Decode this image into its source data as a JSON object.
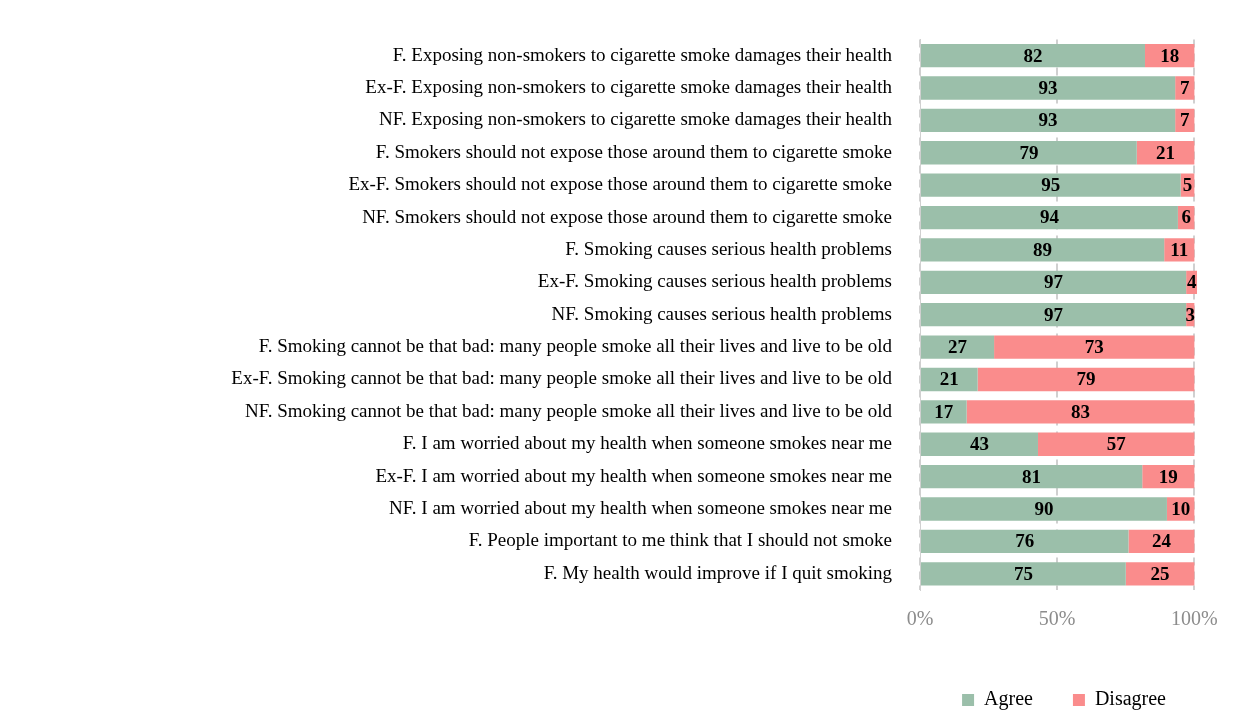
{
  "chart_data": {
    "type": "bar",
    "orientation": "horizontal",
    "stacked": true,
    "categories": [
      "F. Exposing non-smokers to cigarette smoke damages their health",
      "Ex-F. Exposing non-smokers to cigarette smoke damages their health",
      "NF. Exposing non-smokers to cigarette smoke damages their health",
      "F. Smokers should not expose those around them to cigarette smoke",
      "Ex-F. Smokers should not expose those around them to cigarette smoke",
      "NF. Smokers should not expose those around them to cigarette smoke",
      "F. Smoking causes serious health problems",
      "Ex-F. Smoking causes serious health problems",
      "NF. Smoking causes serious health problems",
      "F. Smoking cannot be that bad: many people smoke all their lives and live to be old",
      "Ex-F. Smoking cannot be that bad: many people smoke all their lives and live to be old",
      "NF. Smoking cannot be that bad: many people smoke all their lives and live to be old",
      "F. I am worried about my health when someone smokes near me",
      "Ex-F. I am worried about my health when someone smokes near me",
      "NF. I am worried about my health when someone smokes near me",
      "F. People important to me think that I should not smoke",
      "F. My health would improve if I quit smoking"
    ],
    "series": [
      {
        "name": "Agree",
        "color": "#9bbfaa",
        "values": [
          82,
          93,
          93,
          79,
          95,
          94,
          89,
          97,
          97,
          27,
          21,
          17,
          43,
          81,
          90,
          76,
          75
        ]
      },
      {
        "name": "Disagree",
        "color": "#fa8c8c",
        "values": [
          18,
          7,
          7,
          21,
          5,
          6,
          11,
          4,
          3,
          73,
          79,
          83,
          57,
          19,
          10,
          24,
          25
        ]
      }
    ],
    "xlim": [
      0,
      101
    ],
    "xticks": [
      {
        "value": 0,
        "label": "0%"
      },
      {
        "value": 50,
        "label": "50%"
      },
      {
        "value": 100,
        "label": "100%"
      }
    ],
    "grid": "x",
    "data_labels": true,
    "legend": "bottom"
  }
}
